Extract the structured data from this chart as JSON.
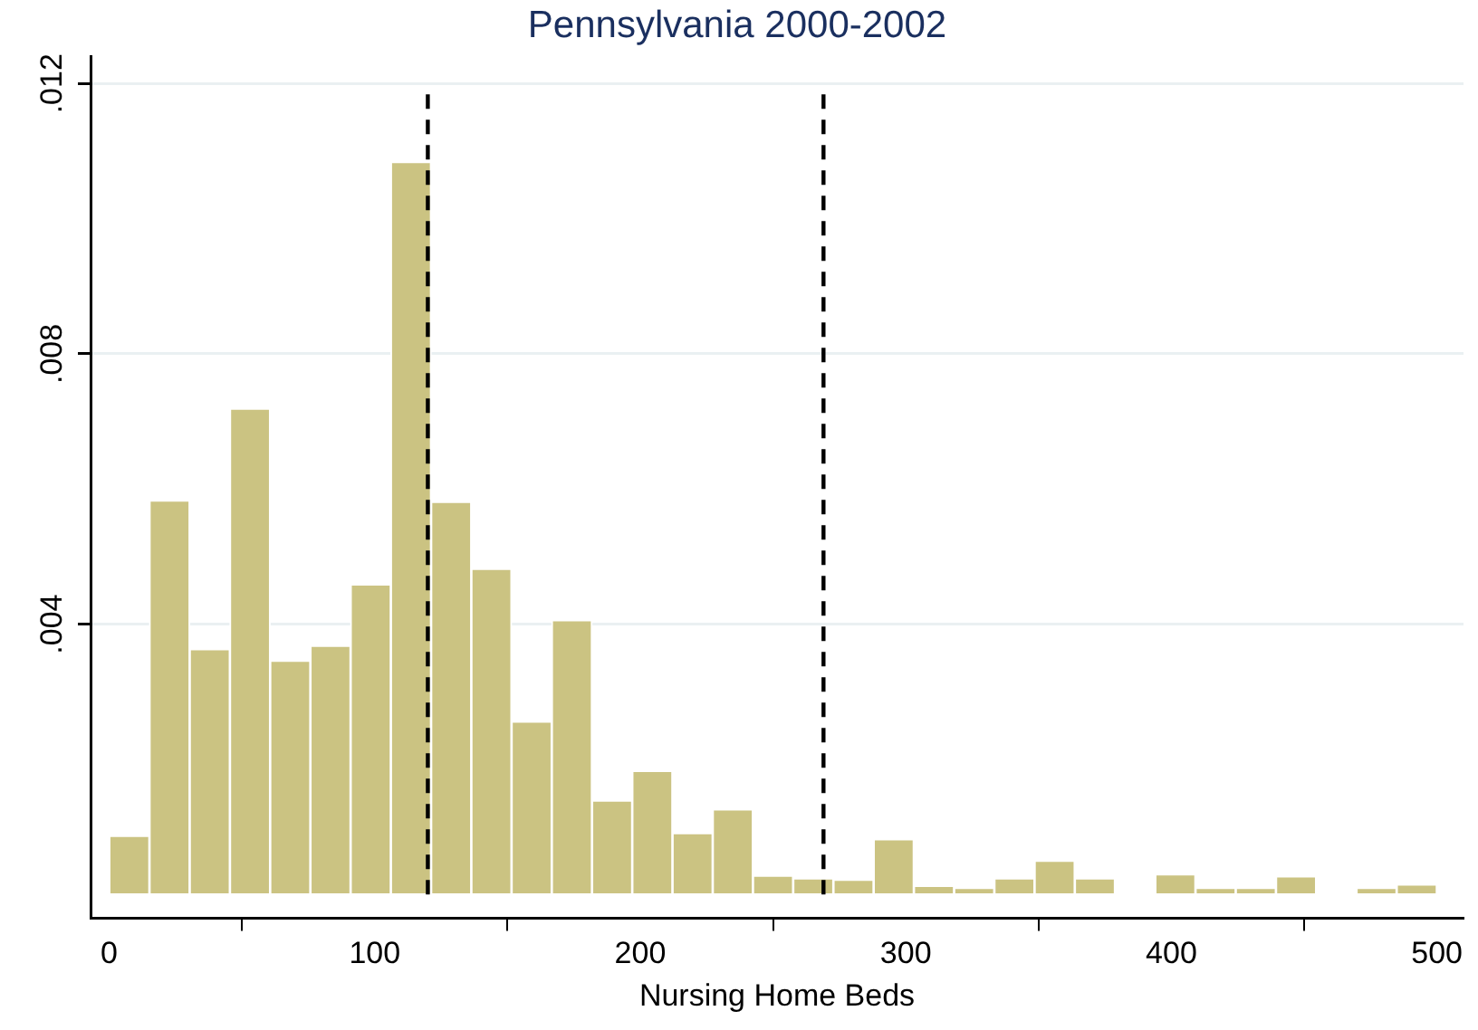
{
  "chart_data": {
    "type": "histogram",
    "title": "Pennsylvania 2000-2002",
    "xlabel": "Nursing Home Beds",
    "bins": [
      0,
      15.2,
      30.3,
      45.5,
      60.6,
      75.8,
      90.9,
      106.1,
      121.2,
      136.4,
      151.5,
      166.7,
      181.8,
      197,
      212.1,
      227.3,
      242.4,
      257.6,
      272.7,
      287.9,
      303,
      318.2,
      333.3,
      348.5,
      363.6,
      378.8,
      393.9,
      409.1,
      424.2,
      439.4,
      454.5,
      469.7,
      484.8,
      500
    ],
    "values": [
      0.00087,
      0.00583,
      0.00363,
      0.00719,
      0.00346,
      0.00368,
      0.00459,
      0.01084,
      0.00581,
      0.00482,
      0.00256,
      0.00406,
      0.00139,
      0.00183,
      0.00091,
      0.00126,
      0.00028,
      0.00024,
      0.00022,
      0.00082,
      0.00013,
      0.0001,
      0.00024,
      0.0005,
      0.00024,
      0,
      0.0003,
      0.0001,
      0.0001,
      0.00027,
      0,
      0.0001,
      0.00015
    ],
    "color": "#cbc382",
    "xlim": [
      -7,
      510
    ],
    "xticks": [
      0,
      100,
      200,
      300,
      400,
      500
    ],
    "ylim": [
      -0.00035,
      0.0124
    ],
    "yticks": [
      {
        "value": 0.004,
        "label": ".004"
      },
      {
        "value": 0.008,
        "label": ".008"
      },
      {
        "value": 0.012,
        "label": ".012"
      }
    ],
    "grid": "y",
    "ref_lines": [
      {
        "axis": "x",
        "value": 120,
        "line_style": "dashed",
        "color": "#000000"
      },
      {
        "axis": "x",
        "value": 269,
        "line_style": "dashed",
        "color": "#000000"
      }
    ]
  }
}
